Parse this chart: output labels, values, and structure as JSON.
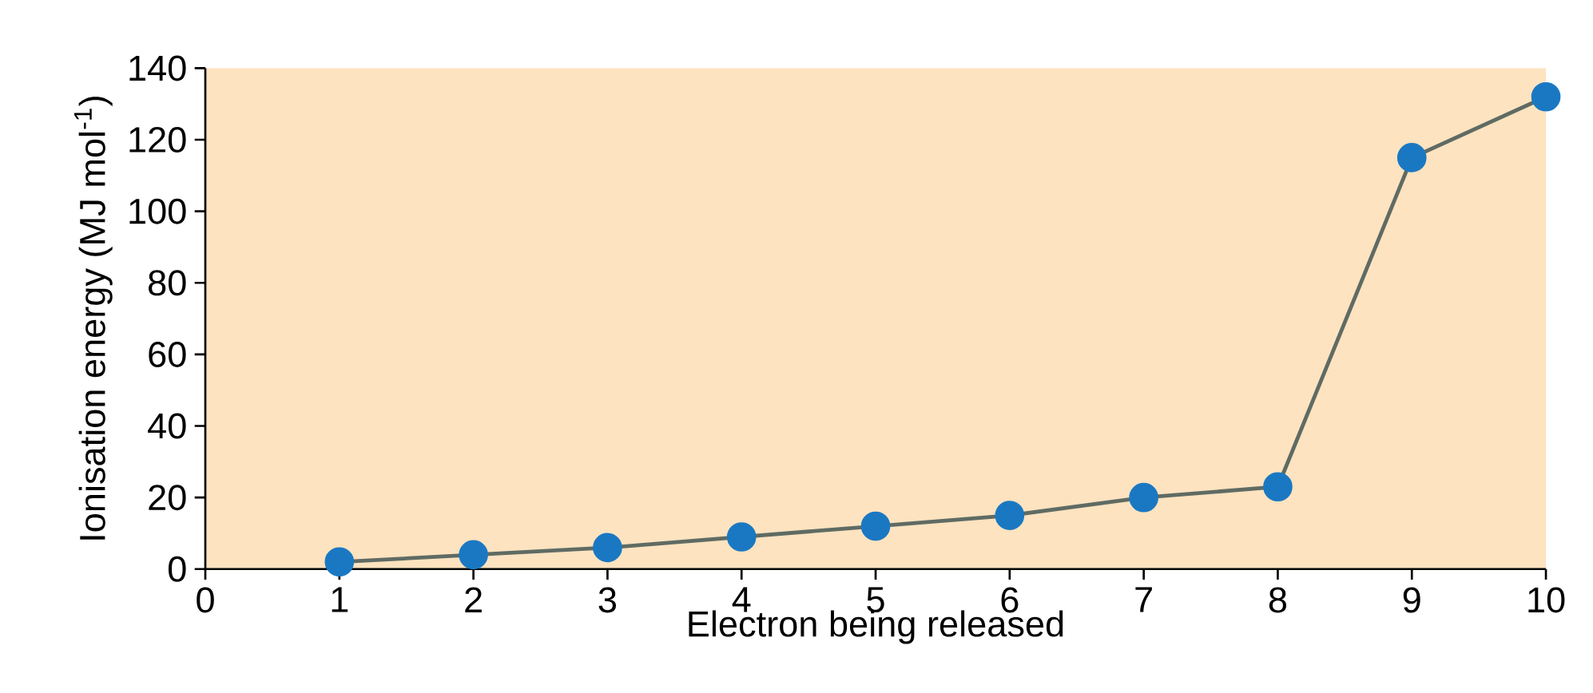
{
  "chart_data": {
    "type": "line",
    "xlabel": "Electron being released",
    "ylabel": "Ionisation energy (MJ mol$^{-1}$)",
    "x": [
      1,
      2,
      3,
      4,
      5,
      6,
      7,
      8,
      9,
      10
    ],
    "series": [
      {
        "color": "#5f6b63",
        "values": [
          2,
          4,
          6,
          9,
          12,
          15,
          20,
          23,
          115,
          132
        ]
      }
    ],
    "xlim": [
      0,
      10
    ],
    "ylim": [
      0,
      140
    ],
    "xticks": [
      0,
      1,
      2,
      3,
      4,
      5,
      6,
      7,
      8,
      9,
      10
    ],
    "yticks": [
      0,
      20,
      40,
      60,
      80,
      100,
      120,
      140
    ],
    "marker": "circle",
    "line_style": "solid",
    "grid": false
  }
}
